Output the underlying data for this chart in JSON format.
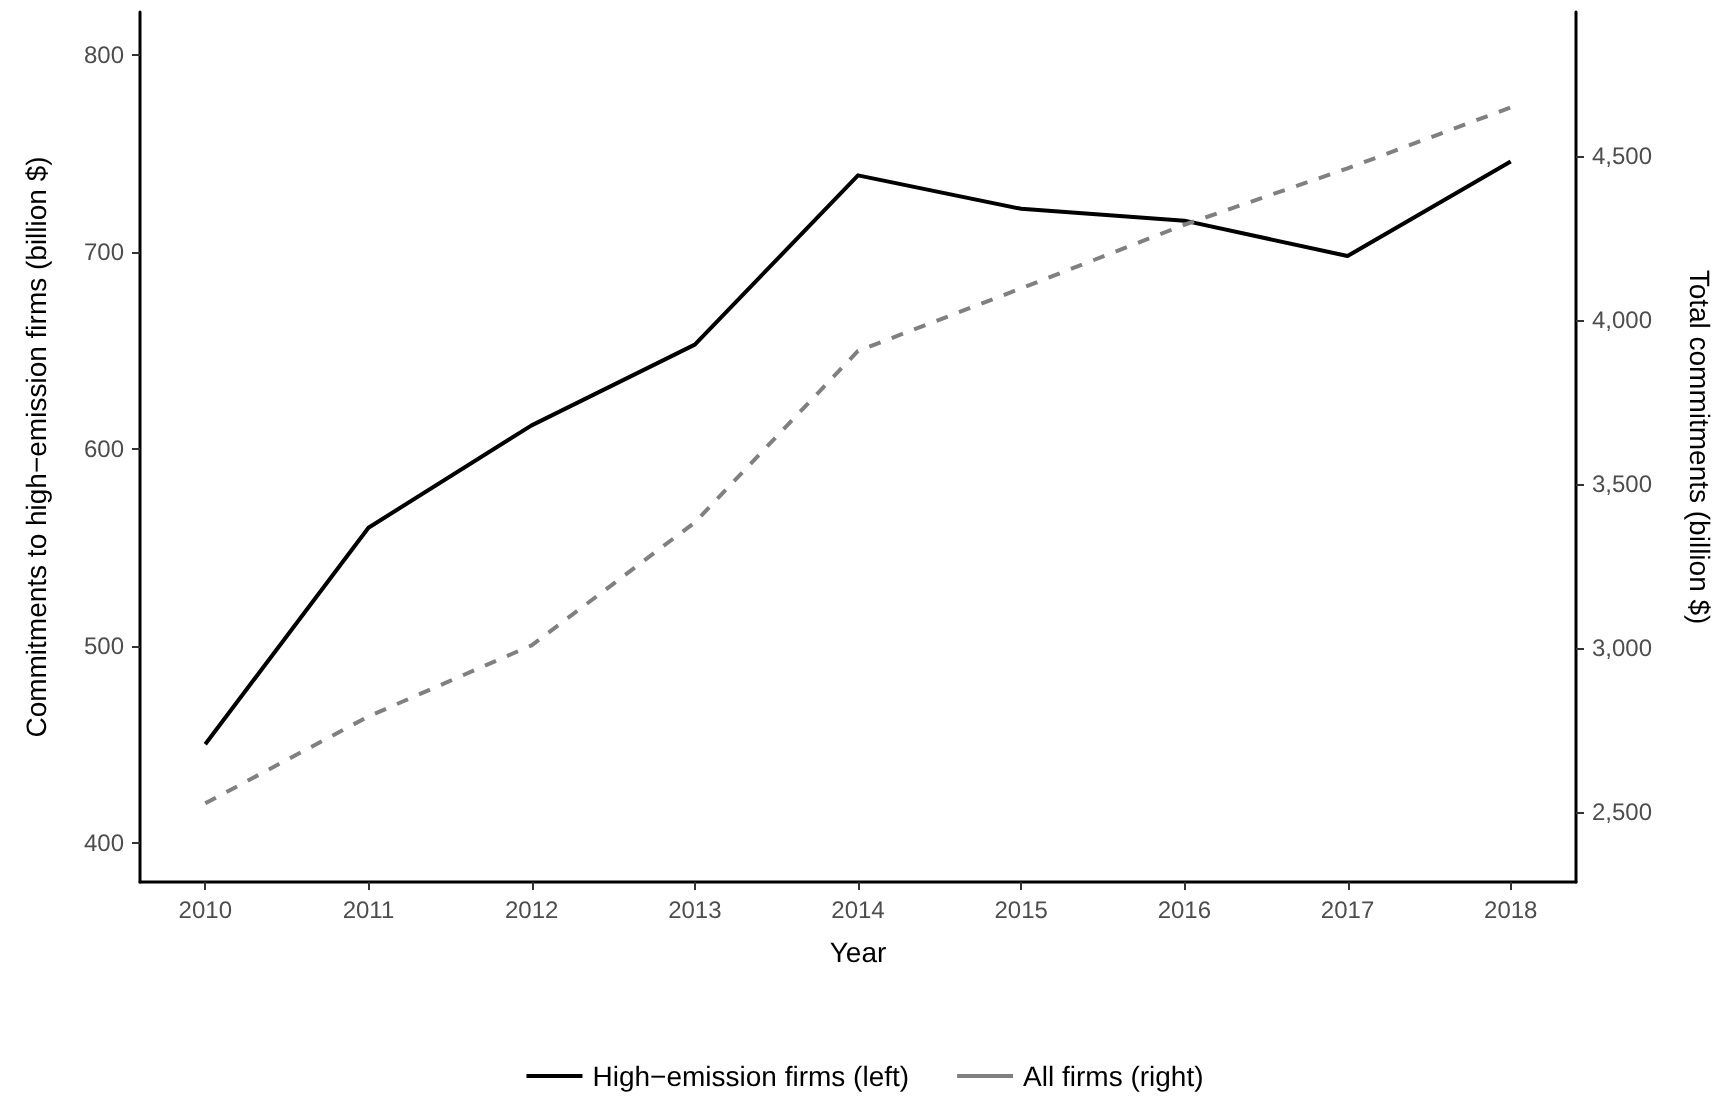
{
  "chart_data": {
    "type": "line",
    "xlabel": "Year",
    "ylabel": "Commitments to high−emission firms (billion $)",
    "y2label": "Total commitments (billion $)",
    "x": [
      2010,
      2011,
      2012,
      2013,
      2014,
      2015,
      2016,
      2017,
      2018
    ],
    "xlim": [
      2009.6,
      2018.4
    ],
    "xticks": [
      2010,
      2011,
      2012,
      2013,
      2014,
      2015,
      2016,
      2017,
      2018
    ],
    "ylim": [
      380,
      822
    ],
    "yticks": [
      400,
      500,
      600,
      700,
      800
    ],
    "y2lim": [
      2286,
      4940
    ],
    "y2ticks": [
      {
        "value": 2500,
        "label": "2,500"
      },
      {
        "value": 3000,
        "label": "3,000"
      },
      {
        "value": 3500,
        "label": "3,500"
      },
      {
        "value": 4000,
        "label": "4,000"
      },
      {
        "value": 4500,
        "label": "4,500"
      }
    ],
    "series": [
      {
        "name": "High−emission firms (left)",
        "color": "#000000",
        "line_style": "solid",
        "values": [
          450,
          560,
          612,
          653,
          739,
          722,
          716,
          698,
          746
        ]
      },
      {
        "name": "All firms (right)",
        "color": "#808080",
        "line_style": "dashed",
        "axis": "y2",
        "values": [
          2526,
          2791,
          3008,
          3383,
          3906,
          4097,
          4291,
          4463,
          4649
        ]
      }
    ],
    "grid": false,
    "legend": "bottom",
    "marker": "none"
  }
}
